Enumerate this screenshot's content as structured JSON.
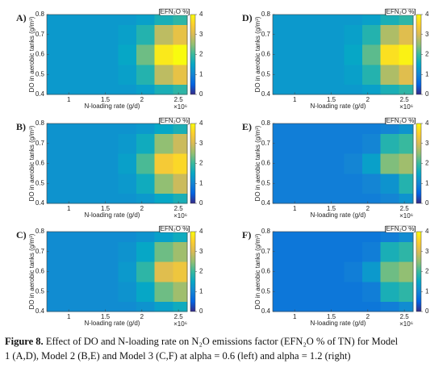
{
  "chart_data": [
    {
      "type": "heatmap",
      "panel_label": "A)",
      "x_label": "N-loading rate (g/d)",
      "x_multiplier": "×10⁶",
      "y_label": "DO in aerobic tanks (g/m³)",
      "x": [
        0.8,
        1.05,
        1.3,
        1.55,
        1.8,
        2.05,
        2.3,
        2.55
      ],
      "y": [
        0.4,
        0.5,
        0.6,
        0.7,
        0.8
      ],
      "z": [
        [
          1.3,
          1.3,
          1.3,
          1.3,
          1.3,
          1.4,
          1.7,
          1.9
        ],
        [
          1.3,
          1.3,
          1.3,
          1.3,
          1.4,
          1.8,
          2.8,
          3.2
        ],
        [
          1.3,
          1.3,
          1.3,
          1.3,
          1.5,
          2.3,
          3.8,
          4.0
        ],
        [
          1.3,
          1.3,
          1.3,
          1.3,
          1.4,
          1.8,
          2.8,
          3.2
        ],
        [
          1.3,
          1.3,
          1.3,
          1.3,
          1.3,
          1.4,
          1.7,
          1.9
        ]
      ],
      "xlim": [
        0.7,
        2.62
      ],
      "ylim": [
        0.4,
        0.8
      ],
      "xticks": [
        1,
        1.5,
        2,
        2.5
      ],
      "yticks": [
        0.4,
        0.5,
        0.6,
        0.7,
        0.8
      ],
      "colorbar": {
        "label": "[EFN₂O %]",
        "lim": [
          0,
          4
        ],
        "ticks": [
          0,
          1,
          2,
          3,
          4
        ]
      }
    },
    {
      "type": "heatmap",
      "panel_label": "B)",
      "x_label": "N-loading rate (g/d)",
      "x_multiplier": "×10⁶",
      "y_label": "DO in aerobic tanks (g/m³)",
      "x": [
        0.8,
        1.05,
        1.3,
        1.55,
        1.8,
        2.05,
        2.3,
        2.55
      ],
      "y": [
        0.4,
        0.5,
        0.6,
        0.7,
        0.8
      ],
      "z": [
        [
          1.2,
          1.2,
          1.2,
          1.2,
          1.2,
          1.3,
          1.5,
          1.7
        ],
        [
          1.2,
          1.2,
          1.2,
          1.2,
          1.3,
          1.6,
          2.5,
          2.9
        ],
        [
          1.2,
          1.2,
          1.2,
          1.2,
          1.4,
          2.1,
          3.4,
          3.6
        ],
        [
          1.2,
          1.2,
          1.2,
          1.2,
          1.3,
          1.6,
          2.5,
          2.9
        ],
        [
          1.2,
          1.2,
          1.2,
          1.2,
          1.2,
          1.3,
          1.5,
          1.7
        ]
      ],
      "xlim": [
        0.7,
        2.62
      ],
      "ylim": [
        0.4,
        0.8
      ],
      "xticks": [
        1,
        1.5,
        2,
        2.5
      ],
      "yticks": [
        0.4,
        0.5,
        0.6,
        0.7,
        0.8
      ],
      "colorbar": {
        "label": "[EFN₂O %]",
        "lim": [
          0,
          4
        ],
        "ticks": [
          0,
          1,
          2,
          3,
          4
        ]
      }
    },
    {
      "type": "heatmap",
      "panel_label": "C)",
      "x_label": "N-loading rate (g/d)",
      "x_multiplier": "×10⁶",
      "y_label": "DO in aerobic tanks (g/m³)",
      "x": [
        0.8,
        1.05,
        1.3,
        1.55,
        1.8,
        2.05,
        2.3,
        2.55
      ],
      "y": [
        0.4,
        0.5,
        0.6,
        0.7,
        0.8
      ],
      "z": [
        [
          1.1,
          1.1,
          1.1,
          1.1,
          1.1,
          1.2,
          1.4,
          1.6
        ],
        [
          1.1,
          1.1,
          1.1,
          1.1,
          1.2,
          1.5,
          2.3,
          2.6
        ],
        [
          1.1,
          1.1,
          1.1,
          1.1,
          1.3,
          1.9,
          3.1,
          3.3
        ],
        [
          1.1,
          1.1,
          1.1,
          1.1,
          1.2,
          1.5,
          2.3,
          2.6
        ],
        [
          1.1,
          1.1,
          1.1,
          1.1,
          1.1,
          1.2,
          1.4,
          1.6
        ]
      ],
      "xlim": [
        0.7,
        2.62
      ],
      "ylim": [
        0.4,
        0.8
      ],
      "xticks": [
        1,
        1.5,
        2,
        2.5
      ],
      "yticks": [
        0.4,
        0.5,
        0.6,
        0.7,
        0.8
      ],
      "colorbar": {
        "label": "[EFN₂O %]",
        "lim": [
          0,
          4
        ],
        "ticks": [
          0,
          1,
          2,
          3,
          4
        ]
      }
    },
    {
      "type": "heatmap",
      "panel_label": "D)",
      "x_label": "N-loading rate (g/d)",
      "x_multiplier": "×10⁶",
      "y_label": "DO in aerobic tanks (g/m³)",
      "x": [
        0.8,
        1.05,
        1.3,
        1.55,
        1.8,
        2.05,
        2.3,
        2.55
      ],
      "y": [
        0.4,
        0.5,
        0.6,
        0.7,
        0.8
      ],
      "z": [
        [
          1.3,
          1.3,
          1.3,
          1.3,
          1.3,
          1.4,
          1.7,
          1.9
        ],
        [
          1.3,
          1.3,
          1.3,
          1.3,
          1.4,
          1.8,
          2.7,
          3.1
        ],
        [
          1.3,
          1.3,
          1.3,
          1.3,
          1.5,
          2.2,
          3.7,
          3.9
        ],
        [
          1.3,
          1.3,
          1.3,
          1.3,
          1.4,
          1.8,
          2.7,
          3.1
        ],
        [
          1.3,
          1.3,
          1.3,
          1.3,
          1.3,
          1.4,
          1.7,
          1.9
        ]
      ],
      "xlim": [
        0.7,
        2.62
      ],
      "ylim": [
        0.4,
        0.8
      ],
      "xticks": [
        1,
        1.5,
        2,
        2.5
      ],
      "yticks": [
        0.4,
        0.5,
        0.6,
        0.7,
        0.8
      ],
      "colorbar": {
        "label": "[EFN₂O %]",
        "lim": [
          0,
          4
        ],
        "ticks": [
          0,
          1,
          2,
          3,
          4
        ]
      }
    },
    {
      "type": "heatmap",
      "panel_label": "E)",
      "x_label": "N-loading rate (g/d)",
      "x_multiplier": "×10⁶",
      "y_label": "DO in aerobic tanks (g/m³)",
      "x": [
        0.8,
        1.05,
        1.3,
        1.55,
        1.8,
        2.05,
        2.3,
        2.55
      ],
      "y": [
        0.4,
        0.5,
        0.6,
        0.7,
        0.8
      ],
      "z": [
        [
          0.9,
          0.9,
          0.9,
          0.9,
          0.9,
          0.9,
          1.0,
          1.2
        ],
        [
          0.9,
          0.9,
          0.9,
          0.9,
          0.9,
          1.0,
          1.2,
          1.8
        ],
        [
          0.9,
          0.9,
          0.9,
          0.9,
          1.0,
          1.4,
          2.4,
          2.6
        ],
        [
          0.9,
          0.9,
          0.9,
          0.9,
          0.9,
          1.0,
          1.8,
          2.0
        ],
        [
          0.9,
          0.9,
          0.9,
          0.9,
          0.9,
          0.9,
          1.0,
          1.2
        ]
      ],
      "xlim": [
        0.7,
        2.62
      ],
      "ylim": [
        0.4,
        0.8
      ],
      "xticks": [
        1,
        1.5,
        2,
        2.5
      ],
      "yticks": [
        0.4,
        0.5,
        0.6,
        0.7,
        0.8
      ],
      "colorbar": {
        "label": "[EFN₂O %]",
        "lim": [
          0,
          4
        ],
        "ticks": [
          0,
          1,
          2,
          3,
          4
        ]
      }
    },
    {
      "type": "heatmap",
      "panel_label": "F)",
      "x_label": "N-loading rate (g/d)",
      "x_multiplier": "×10⁶",
      "y_label": "DO in aerobic tanks (g/m³)",
      "x": [
        0.8,
        1.05,
        1.3,
        1.55,
        1.8,
        2.05,
        2.3,
        2.55
      ],
      "y": [
        0.4,
        0.5,
        0.6,
        0.7,
        0.8
      ],
      "z": [
        [
          0.8,
          0.8,
          0.8,
          0.8,
          0.8,
          0.8,
          0.9,
          1.1
        ],
        [
          0.8,
          0.8,
          0.8,
          0.8,
          0.8,
          0.9,
          1.7,
          1.9
        ],
        [
          0.8,
          0.8,
          0.8,
          0.8,
          0.9,
          1.3,
          2.3,
          2.5
        ],
        [
          0.8,
          0.8,
          0.8,
          0.8,
          0.8,
          0.9,
          1.7,
          1.9
        ],
        [
          0.8,
          0.8,
          0.8,
          0.8,
          0.8,
          0.8,
          0.9,
          1.1
        ]
      ],
      "xlim": [
        0.7,
        2.62
      ],
      "ylim": [
        0.4,
        0.8
      ],
      "xticks": [
        1,
        1.5,
        2,
        2.5
      ],
      "yticks": [
        0.4,
        0.5,
        0.6,
        0.7,
        0.8
      ],
      "colorbar": {
        "label": "[EFN₂O %]",
        "lim": [
          0,
          4
        ],
        "ticks": [
          0,
          1,
          2,
          3,
          4
        ]
      }
    }
  ],
  "caption": {
    "label": "Figure 8.",
    "lines": [
      "Effect of DO and N-loading rate on N₂O emissions factor (EFN₂O % of TN) for Model",
      "1 (A,D), Model 2 (B,E) and Model 3 (C,F) at alpha = 0.6 (left) and alpha = 1.2 (right)"
    ]
  }
}
